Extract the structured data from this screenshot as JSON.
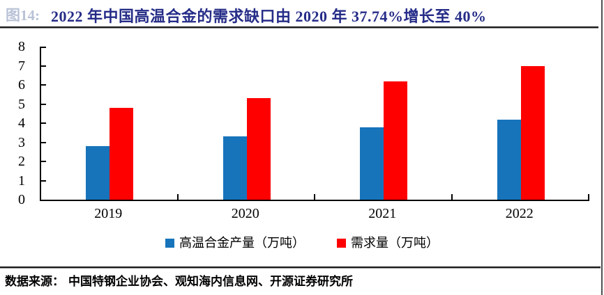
{
  "figure": {
    "number_label": "图14:",
    "title": "2022 年中国高温合金的需求缺口由 2020 年 37.74%增长至 40%"
  },
  "chart_data": {
    "type": "bar",
    "categories": [
      "2019",
      "2020",
      "2021",
      "2022"
    ],
    "series": [
      {
        "name": "高温合金产量（万吨）",
        "role": "production",
        "color": "#1774bb",
        "values": [
          2.8,
          3.3,
          3.8,
          4.2
        ]
      },
      {
        "name": "需求量（万吨）",
        "role": "demand",
        "color": "#fe0000",
        "values": [
          4.8,
          5.3,
          6.2,
          7.0
        ]
      }
    ],
    "title": "",
    "xlabel": "",
    "ylabel": "",
    "ylim": [
      0,
      8
    ],
    "y_ticks": [
      8,
      7,
      6,
      5,
      4,
      3,
      2,
      1,
      0
    ],
    "grid": false,
    "legend_position": "bottom"
  },
  "footer": {
    "source_label": "数据来源：",
    "source_text": "中国特钢企业协会、观知海内信息网、开源证券研究所"
  }
}
